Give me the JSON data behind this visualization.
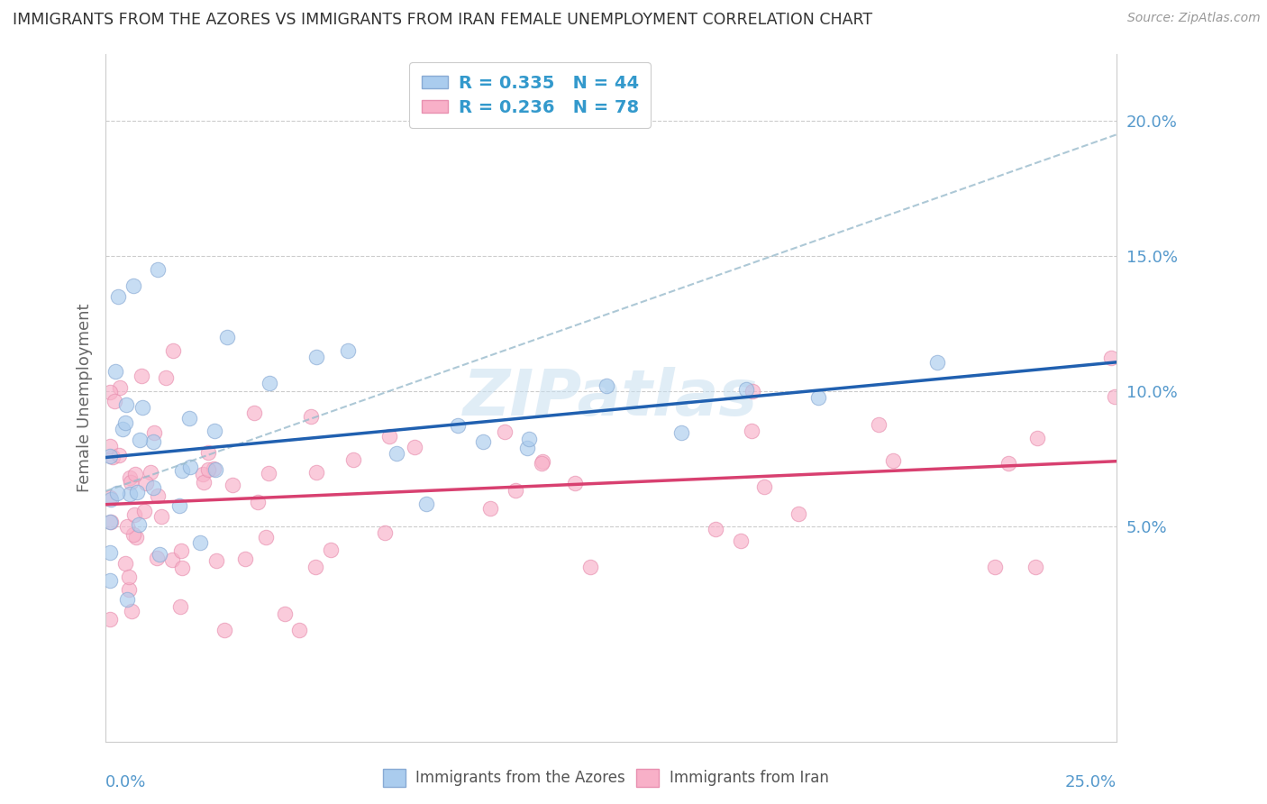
{
  "title": "IMMIGRANTS FROM THE AZORES VS IMMIGRANTS FROM IRAN FEMALE UNEMPLOYMENT CORRELATION CHART",
  "source": "Source: ZipAtlas.com",
  "ylabel": "Female Unemployment",
  "ytick_values": [
    0.05,
    0.1,
    0.15,
    0.2
  ],
  "ytick_labels": [
    "5.0%",
    "10.0%",
    "15.0%",
    "20.0%"
  ],
  "xlim": [
    0.0,
    0.25
  ],
  "ylim": [
    -0.03,
    0.225
  ],
  "azores_color_face": "#aaccee",
  "azores_color_edge": "#88aad4",
  "iran_color_face": "#f8b0c8",
  "iran_color_edge": "#e890b0",
  "azores_line_color": "#2060b0",
  "iran_line_color": "#d84070",
  "dashed_line_color": "#99bbcc",
  "watermark_color": "#c8dff0",
  "legend_label_azores": "R = 0.335   N = 44",
  "legend_label_iran": "R = 0.236   N = 78",
  "bottom_label_azores": "Immigrants from the Azores",
  "bottom_label_iran": "Immigrants from Iran",
  "legend_text_color": "#3399cc",
  "ytick_label_color": "#5599cc",
  "title_color": "#333333",
  "source_color": "#999999",
  "grid_color": "#cccccc",
  "ylabel_color": "#666666",
  "xlabel_color": "#5599cc",
  "bottom_label_color": "#555555"
}
